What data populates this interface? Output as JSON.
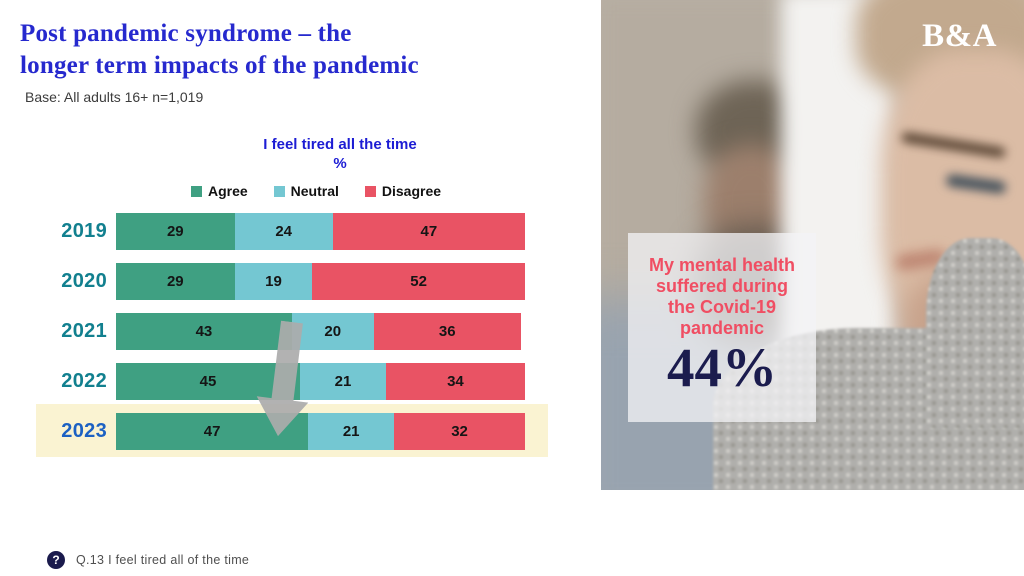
{
  "header": {
    "title_line1": "Post pandemic syndrome – the",
    "title_line2": "longer term impacts of the pandemic",
    "base_note": "Base: All adults 16+ n=1,019"
  },
  "logo": {
    "text": "B&A"
  },
  "chart": {
    "title": "I feel tired all the time",
    "unit_label": "%",
    "chart_data": {
      "type": "bar",
      "orientation": "horizontal-stacked",
      "categories": [
        "2019",
        "2020",
        "2021",
        "2022",
        "2023"
      ],
      "series": [
        {
          "name": "Agree",
          "color": "#3FA082",
          "values": [
            29,
            29,
            43,
            45,
            47
          ]
        },
        {
          "name": "Neutral",
          "color": "#74C7D2",
          "values": [
            24,
            19,
            20,
            21,
            21
          ]
        },
        {
          "name": "Disagree",
          "color": "#E95364",
          "values": [
            47,
            52,
            36,
            34,
            32
          ]
        }
      ],
      "x_range": [
        0,
        100
      ],
      "legend_position": "top",
      "highlighted_category": "2023",
      "highlight_color": "#FAF3D2",
      "category_label_color": "#12808F",
      "highlighted_category_label_color": "#1C61C3",
      "annotation": "downward gray arrow from 2021 Agree segment to 2023 Agree segment"
    }
  },
  "callout": {
    "text": "My mental health suffered during the Covid-19 pandemic",
    "value": "44%",
    "text_color": "#F04E63",
    "value_color": "#1B1C4E"
  },
  "footer": {
    "icon": "?",
    "text": "Q.13 I feel tired all of the time"
  }
}
